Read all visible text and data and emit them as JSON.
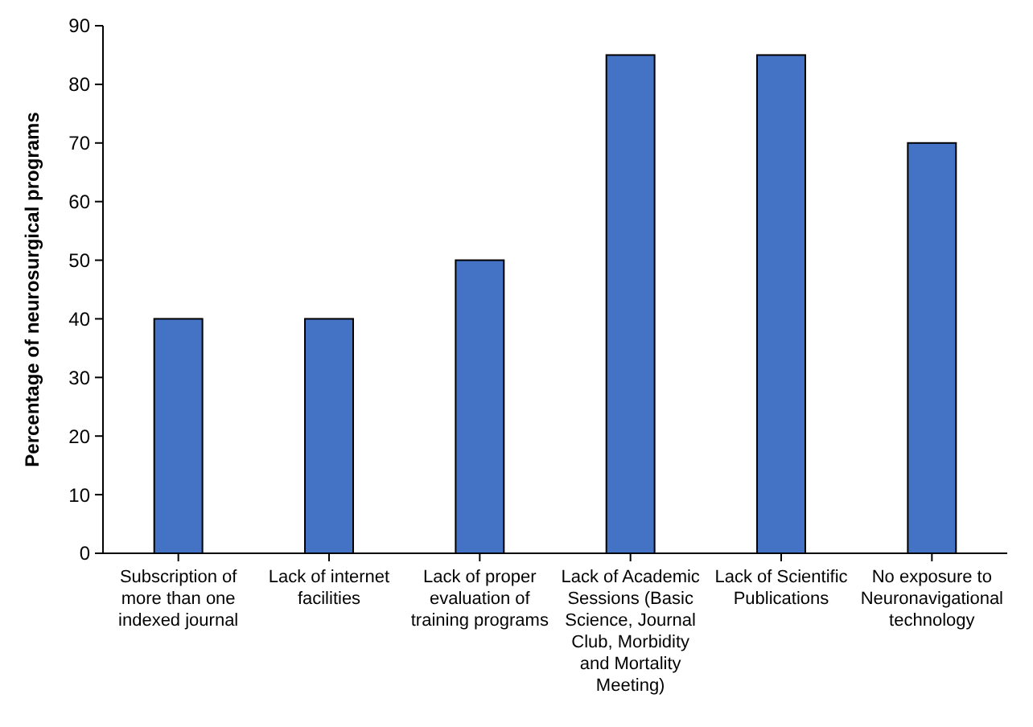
{
  "chart_data": {
    "type": "bar",
    "ylabel": "Percentage of neurosurgical programs",
    "categories": [
      "Subscription of more than one indexed journal",
      "Lack of internet facilities",
      "Lack of proper evaluation of training programs",
      "Lack of Academic Sessions (Basic Science, Journal Club, Morbidity and Mortality Meeting)",
      "Lack of Scientific Publications",
      "No exposure to Neuronavigational technology"
    ],
    "values": [
      40,
      40,
      50,
      85,
      85,
      70
    ],
    "color": "#4472c4",
    "ylim": [
      0,
      90
    ],
    "yticks": [
      0,
      10,
      20,
      30,
      40,
      50,
      60,
      70,
      80,
      90
    ],
    "grid": false
  }
}
